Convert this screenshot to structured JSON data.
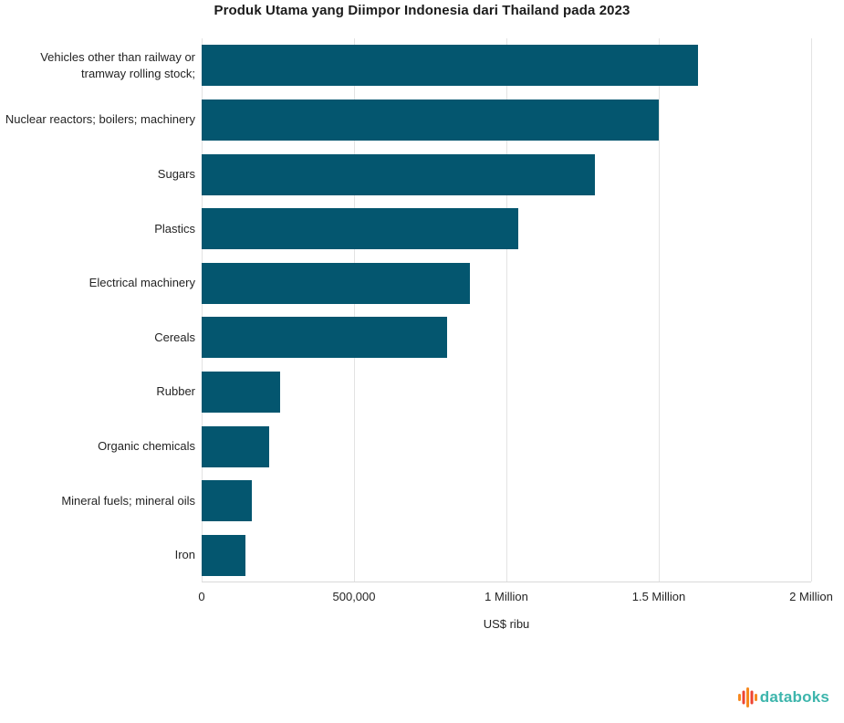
{
  "chart_data": {
    "type": "bar",
    "orientation": "horizontal",
    "title": "Produk Utama yang Diimpor Indonesia dari Thailand pada 2023",
    "xlabel": "US$ ribu",
    "xlim": [
      0,
      2000000
    ],
    "grid": "vertical-only",
    "legend": "none",
    "bar_color": "#04566F",
    "categories": [
      "Vehicles other than railway or tramway rolling stock;",
      "Nuclear reactors; boilers; machinery",
      "Sugars",
      "Plastics",
      "Electrical machinery",
      "Cereals",
      "Rubber",
      "Organic chemicals",
      "Mineral fuels; mineral oils",
      "Iron"
    ],
    "values": [
      1630000,
      1500000,
      1290000,
      1040000,
      880000,
      805000,
      257000,
      221000,
      165000,
      144000
    ],
    "xticks": [
      {
        "label": "0",
        "value": 0
      },
      {
        "label": "500,000",
        "value": 500000
      },
      {
        "label": "1 Million",
        "value": 1000000
      },
      {
        "label": "1.5 Million",
        "value": 1500000
      },
      {
        "label": "2 Million",
        "value": 2000000
      }
    ]
  },
  "branding": {
    "name": "databoks",
    "text_color": "#3DB5AC",
    "icon_colors": [
      "#F6891F",
      "#EE4432",
      "#F6891F",
      "#EE4432",
      "#F6891F"
    ]
  }
}
